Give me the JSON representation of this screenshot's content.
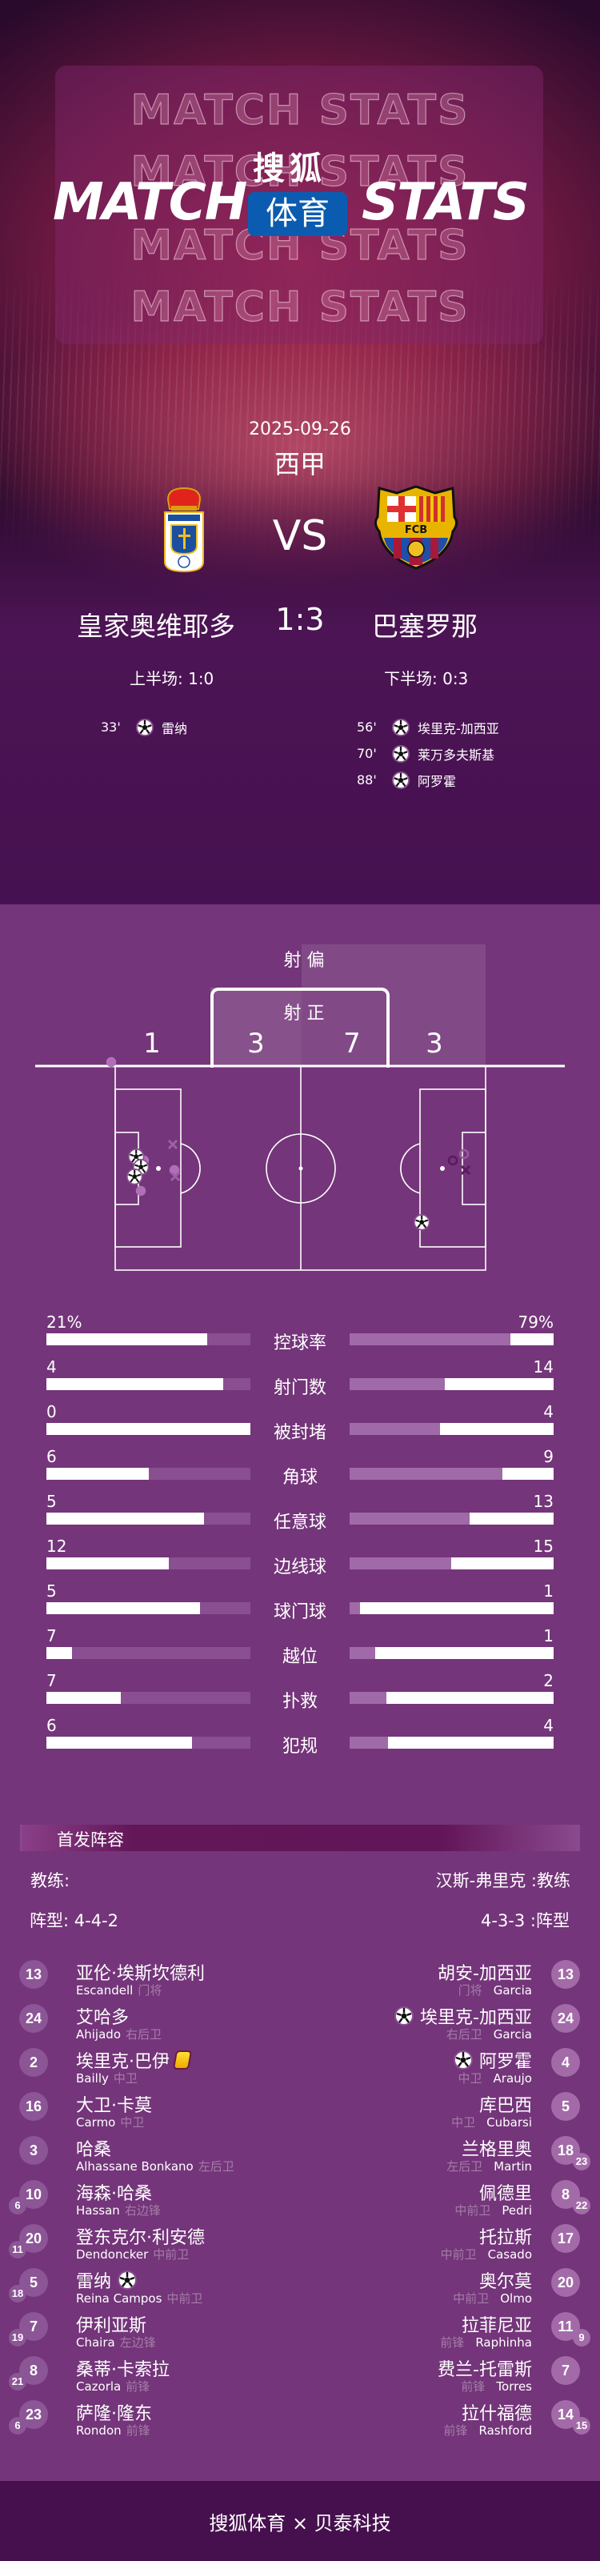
{
  "header": {
    "watermark": "MATCH STATS",
    "title_left": "MATCH",
    "title_right": "STATS",
    "brand_top": "搜狐",
    "brand_box": "体育",
    "brand_box_color": "#0b5cb0"
  },
  "match": {
    "date": "2025-09-26",
    "league": "西甲",
    "vs": "VS",
    "home_team": "皇家奥维耶多",
    "away_team": "巴塞罗那",
    "score": "1:3",
    "first_half": "上半场: 1:0",
    "second_half": "下半场: 0:3",
    "home_crest": "real-oviedo-crest",
    "away_crest": "fc-barcelona-crest"
  },
  "goals": {
    "home": [
      {
        "minute": "33'",
        "player": "雷纳"
      }
    ],
    "away": [
      {
        "minute": "56'",
        "player": "埃里克-加西亚"
      },
      {
        "minute": "70'",
        "player": "莱万多夫斯基"
      },
      {
        "minute": "88'",
        "player": "阿罗霍"
      }
    ]
  },
  "shotmap": {
    "off_target_label": "射 偏",
    "on_target_label": "射 正",
    "home_off_target": "1",
    "home_on_target": "3",
    "away_on_target": "7",
    "away_off_target": "3"
  },
  "stats": [
    {
      "label": "控球率",
      "home": "21%",
      "away": "79%",
      "home_fill": 0.79,
      "away_fill": 0.21
    },
    {
      "label": "射门数",
      "home": "4",
      "away": "14",
      "home_fill": 0.867,
      "away_fill": 0.535
    },
    {
      "label": "被封堵",
      "home": "0",
      "away": "4",
      "home_fill": 1.0,
      "away_fill": 0.557
    },
    {
      "label": "角球",
      "home": "6",
      "away": "9",
      "home_fill": 0.5,
      "away_fill": 0.251
    },
    {
      "label": "任意球",
      "home": "5",
      "away": "13",
      "home_fill": 0.773,
      "away_fill": 0.411
    },
    {
      "label": "边线球",
      "home": "12",
      "away": "15",
      "home_fill": 0.6,
      "away_fill": 0.503
    },
    {
      "label": "球门球",
      "home": "5",
      "away": "1",
      "home_fill": 0.752,
      "away_fill": 0.951
    },
    {
      "label": "越位",
      "home": "7",
      "away": "1",
      "home_fill": 0.126,
      "away_fill": 0.876
    },
    {
      "label": "扑救",
      "home": "7",
      "away": "2",
      "home_fill": 0.366,
      "away_fill": 0.82
    },
    {
      "label": "犯规",
      "home": "6",
      "away": "4",
      "home_fill": 0.715,
      "away_fill": 0.812
    }
  ],
  "lineup": {
    "title": "首发阵容",
    "home_coach": "教练:",
    "away_coach": "汉斯-弗里克 :教练",
    "home_formation": "阵型: 4-4-2",
    "away_formation": "4-3-3 :阵型",
    "home_players": [
      {
        "number": "13",
        "name": "亚伦·埃斯坎德利",
        "en": "Escandell",
        "pos": "门将"
      },
      {
        "number": "24",
        "name": "艾哈多",
        "en": "Ahijado",
        "pos": "右后卫"
      },
      {
        "number": "2",
        "name": "埃里克·巴伊",
        "en": "Bailly",
        "pos": "中卫",
        "event": "yellow-card"
      },
      {
        "number": "16",
        "name": "大卫·卡莫",
        "en": "Carmo",
        "pos": "中卫"
      },
      {
        "number": "3",
        "name": "哈桑",
        "en": "Alhassane Bonkano",
        "pos": "左后卫"
      },
      {
        "number": "10",
        "name": "海森·哈桑",
        "en": "Hassan",
        "pos": "右边锋",
        "sub": "6"
      },
      {
        "number": "20",
        "name": "登东克尔·利安德",
        "en": "Dendoncker",
        "pos": "中前卫",
        "sub": "11"
      },
      {
        "number": "5",
        "name": "雷纳",
        "en": "Reina Campos",
        "pos": "中前卫",
        "sub": "18",
        "event": "goal"
      },
      {
        "number": "7",
        "name": "伊利亚斯",
        "en": "Chaira",
        "pos": "左边锋",
        "sub": "19"
      },
      {
        "number": "8",
        "name": "桑蒂·卡索拉",
        "en": "Cazorla",
        "pos": "前锋",
        "sub": "21"
      },
      {
        "number": "23",
        "name": "萨隆·隆东",
        "en": "Rondon",
        "pos": "前锋",
        "sub": "6"
      }
    ],
    "away_players": [
      {
        "number": "13",
        "name": "胡安-加西亚",
        "en": "Garcia",
        "pos": "门将"
      },
      {
        "number": "24",
        "name": "埃里克-加西亚",
        "en": "Garcia",
        "pos": "右后卫",
        "event": "goal"
      },
      {
        "number": "4",
        "name": "阿罗霍",
        "en": "Araujo",
        "pos": "中卫",
        "event": "goal"
      },
      {
        "number": "5",
        "name": "库巴西",
        "en": "Cubarsi",
        "pos": "中卫"
      },
      {
        "number": "18",
        "name": "兰格里奥",
        "en": "Martin",
        "pos": "左后卫",
        "sub": "23"
      },
      {
        "number": "8",
        "name": "佩德里",
        "en": "Pedri",
        "pos": "中前卫",
        "sub": "22"
      },
      {
        "number": "17",
        "name": "托拉斯",
        "en": "Casado",
        "pos": "中前卫"
      },
      {
        "number": "20",
        "name": "奥尔莫",
        "en": "Olmo",
        "pos": "中前卫"
      },
      {
        "number": "11",
        "name": "拉菲尼亚",
        "en": "Raphinha",
        "pos": "前锋",
        "sub": "9"
      },
      {
        "number": "7",
        "name": "费兰-托雷斯",
        "en": "Torres",
        "pos": "前锋"
      },
      {
        "number": "14",
        "name": "拉什福德",
        "en": "Rashford",
        "pos": "前锋",
        "sub": "15"
      }
    ]
  },
  "footer": {
    "text": "搜狐体育 × 贝泰科技"
  },
  "colors": {
    "page_bg": "#74357a",
    "hero_bottom": "#461150",
    "bar_home_track": "#8a4f91",
    "bar_away_track": "#a06aa8",
    "home_number": "#8c5596",
    "away_number": "#a36aa8",
    "footer_bg": "#46104e"
  }
}
